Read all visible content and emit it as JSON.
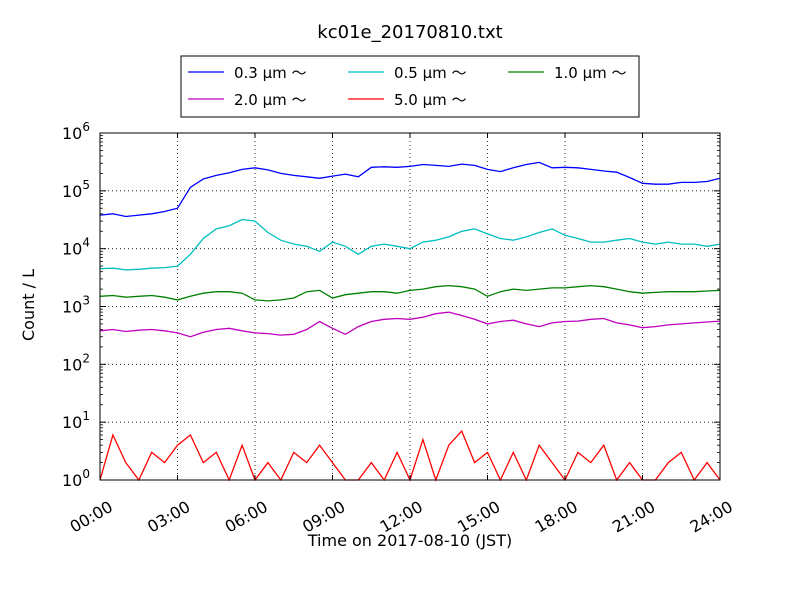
{
  "chart_data": {
    "type": "line",
    "title": "kc01e_20170810.txt",
    "xlabel": "Time on 2017-08-10 (JST)",
    "ylabel": "Count / L",
    "yscale": "log",
    "ylim": [
      1,
      1000000
    ],
    "xlim_hours": [
      0,
      24
    ],
    "grid": true,
    "legend_position": "top-center",
    "x_tick_labels": [
      "00:00",
      "03:00",
      "06:00",
      "09:00",
      "12:00",
      "15:00",
      "18:00",
      "21:00",
      "24:00"
    ],
    "y_tick_labels": [
      {
        "base": "10",
        "exp": "0"
      },
      {
        "base": "10",
        "exp": "1"
      },
      {
        "base": "10",
        "exp": "2"
      },
      {
        "base": "10",
        "exp": "3"
      },
      {
        "base": "10",
        "exp": "4"
      },
      {
        "base": "10",
        "exp": "5"
      },
      {
        "base": "10",
        "exp": "6"
      }
    ],
    "x_hours": [
      0,
      0.5,
      1,
      1.5,
      2,
      2.5,
      3,
      3.5,
      4,
      4.5,
      5,
      5.5,
      6,
      6.5,
      7,
      7.5,
      8,
      8.5,
      9,
      9.5,
      10,
      10.5,
      11,
      11.5,
      12,
      12.5,
      13,
      13.5,
      14,
      14.5,
      15,
      15.5,
      16,
      16.5,
      17,
      17.5,
      18,
      18.5,
      19,
      19.5,
      20,
      20.5,
      21,
      21.5,
      22,
      22.5,
      23,
      23.5,
      24
    ],
    "series": [
      {
        "name": "0.3 μm ～",
        "color": "#0000ff",
        "values": [
          38000,
          40000,
          36000,
          38000,
          40000,
          44000,
          50000,
          115000,
          160000,
          185000,
          205000,
          235000,
          250000,
          230000,
          200000,
          185000,
          175000,
          165000,
          180000,
          195000,
          175000,
          255000,
          260000,
          255000,
          265000,
          285000,
          275000,
          265000,
          290000,
          275000,
          235000,
          215000,
          250000,
          285000,
          310000,
          250000,
          255000,
          250000,
          235000,
          220000,
          210000,
          170000,
          135000,
          130000,
          130000,
          140000,
          140000,
          145000,
          165000
        ]
      },
      {
        "name": "0.5 μm ～",
        "color": "#00bfbf",
        "values": [
          4500,
          4600,
          4300,
          4400,
          4600,
          4700,
          5000,
          8000,
          15000,
          22000,
          25000,
          32000,
          30000,
          19000,
          14000,
          12000,
          11000,
          9000,
          13000,
          11000,
          8000,
          11000,
          12000,
          11000,
          10000,
          13000,
          14000,
          16000,
          20000,
          22000,
          18000,
          15000,
          14000,
          16000,
          19000,
          22000,
          17000,
          15000,
          13000,
          13000,
          14000,
          15000,
          13000,
          12000,
          13000,
          12000,
          12000,
          11000,
          12000
        ]
      },
      {
        "name": "1.0 μm ～",
        "color": "#008000",
        "values": [
          1500,
          1550,
          1450,
          1500,
          1550,
          1450,
          1300,
          1500,
          1700,
          1800,
          1800,
          1700,
          1300,
          1250,
          1300,
          1400,
          1800,
          1900,
          1400,
          1600,
          1700,
          1800,
          1800,
          1700,
          1900,
          2000,
          2200,
          2300,
          2200,
          2000,
          1500,
          1800,
          2000,
          1900,
          2000,
          2100,
          2100,
          2200,
          2300,
          2200,
          2000,
          1800,
          1700,
          1750,
          1800,
          1800,
          1800,
          1850,
          1900
        ]
      },
      {
        "name": "2.0 μm ～",
        "color": "#bf00bf",
        "values": [
          380,
          400,
          370,
          390,
          400,
          380,
          350,
          300,
          360,
          400,
          420,
          380,
          350,
          340,
          320,
          330,
          400,
          550,
          420,
          330,
          450,
          550,
          600,
          620,
          600,
          650,
          750,
          800,
          700,
          600,
          500,
          550,
          580,
          500,
          450,
          520,
          550,
          560,
          600,
          620,
          520,
          480,
          430,
          450,
          480,
          500,
          520,
          540,
          560
        ]
      },
      {
        "name": "5.0 μm ～",
        "color": "#ff0000",
        "values": [
          1,
          6,
          2,
          1,
          3,
          2,
          4,
          6,
          2,
          3,
          1,
          4,
          1,
          2,
          1,
          3,
          2,
          4,
          2,
          1,
          1,
          2,
          1,
          3,
          1,
          5,
          1,
          4,
          7,
          2,
          3,
          1,
          3,
          1,
          4,
          2,
          1,
          3,
          2,
          4,
          1,
          2,
          1,
          1,
          2,
          3,
          1,
          2,
          1
        ]
      }
    ]
  }
}
